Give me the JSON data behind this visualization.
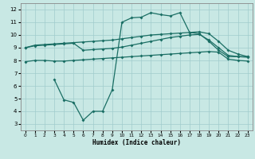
{
  "bg_color": "#c8e8e4",
  "grid_color": "#a0cccc",
  "line_color": "#1a6e64",
  "xlabel": "Humidex (Indice chaleur)",
  "xlim": [
    -0.5,
    23.5
  ],
  "ylim": [
    2.5,
    12.5
  ],
  "xticks": [
    0,
    1,
    2,
    3,
    4,
    5,
    6,
    7,
    8,
    9,
    10,
    11,
    12,
    13,
    14,
    15,
    16,
    17,
    18,
    19,
    20,
    21,
    22,
    23
  ],
  "yticks": [
    3,
    4,
    5,
    6,
    7,
    8,
    9,
    10,
    11,
    12
  ],
  "line_top_x": [
    0,
    1,
    2,
    3,
    4,
    5,
    6,
    7,
    8,
    9,
    10,
    11,
    12,
    13,
    14,
    15,
    16,
    17,
    18,
    19,
    20,
    21,
    22,
    23
  ],
  "line_top_y": [
    9.0,
    9.2,
    9.25,
    9.3,
    9.35,
    9.4,
    9.45,
    9.5,
    9.55,
    9.6,
    9.7,
    9.8,
    9.9,
    10.0,
    10.05,
    10.1,
    10.15,
    10.2,
    10.25,
    10.1,
    9.5,
    8.8,
    8.5,
    8.3
  ],
  "line_mid_x": [
    0,
    1,
    2,
    3,
    4,
    5,
    6,
    7,
    8,
    9,
    10,
    11,
    12,
    13,
    14,
    15,
    16,
    17,
    18,
    19,
    20,
    21,
    22,
    23
  ],
  "line_mid_y": [
    9.0,
    9.15,
    9.2,
    9.25,
    9.3,
    9.35,
    8.8,
    8.85,
    8.9,
    8.95,
    9.05,
    9.2,
    9.35,
    9.5,
    9.65,
    9.8,
    9.9,
    10.0,
    10.05,
    9.6,
    9.0,
    8.4,
    8.3,
    8.25
  ],
  "line_bot_x": [
    0,
    1,
    2,
    3,
    4,
    5,
    6,
    7,
    8,
    9,
    10,
    11,
    12,
    13,
    14,
    15,
    16,
    17,
    18,
    19,
    20,
    21,
    22,
    23
  ],
  "line_bot_y": [
    7.9,
    8.0,
    8.0,
    7.95,
    7.95,
    8.0,
    8.05,
    8.1,
    8.15,
    8.2,
    8.25,
    8.3,
    8.35,
    8.4,
    8.45,
    8.5,
    8.55,
    8.6,
    8.65,
    8.7,
    8.65,
    8.1,
    8.0,
    7.95
  ],
  "line_spike_x": [
    3,
    4,
    5,
    6,
    7,
    8,
    9,
    10,
    11,
    12,
    13,
    14,
    15,
    16,
    17,
    18,
    19,
    20,
    21,
    22,
    23
  ],
  "line_spike_y": [
    6.5,
    4.9,
    4.7,
    3.3,
    4.0,
    4.0,
    5.7,
    11.0,
    11.35,
    11.4,
    11.75,
    11.6,
    11.5,
    11.75,
    10.2,
    10.1,
    9.5,
    8.8,
    8.3,
    8.3,
    8.3
  ]
}
